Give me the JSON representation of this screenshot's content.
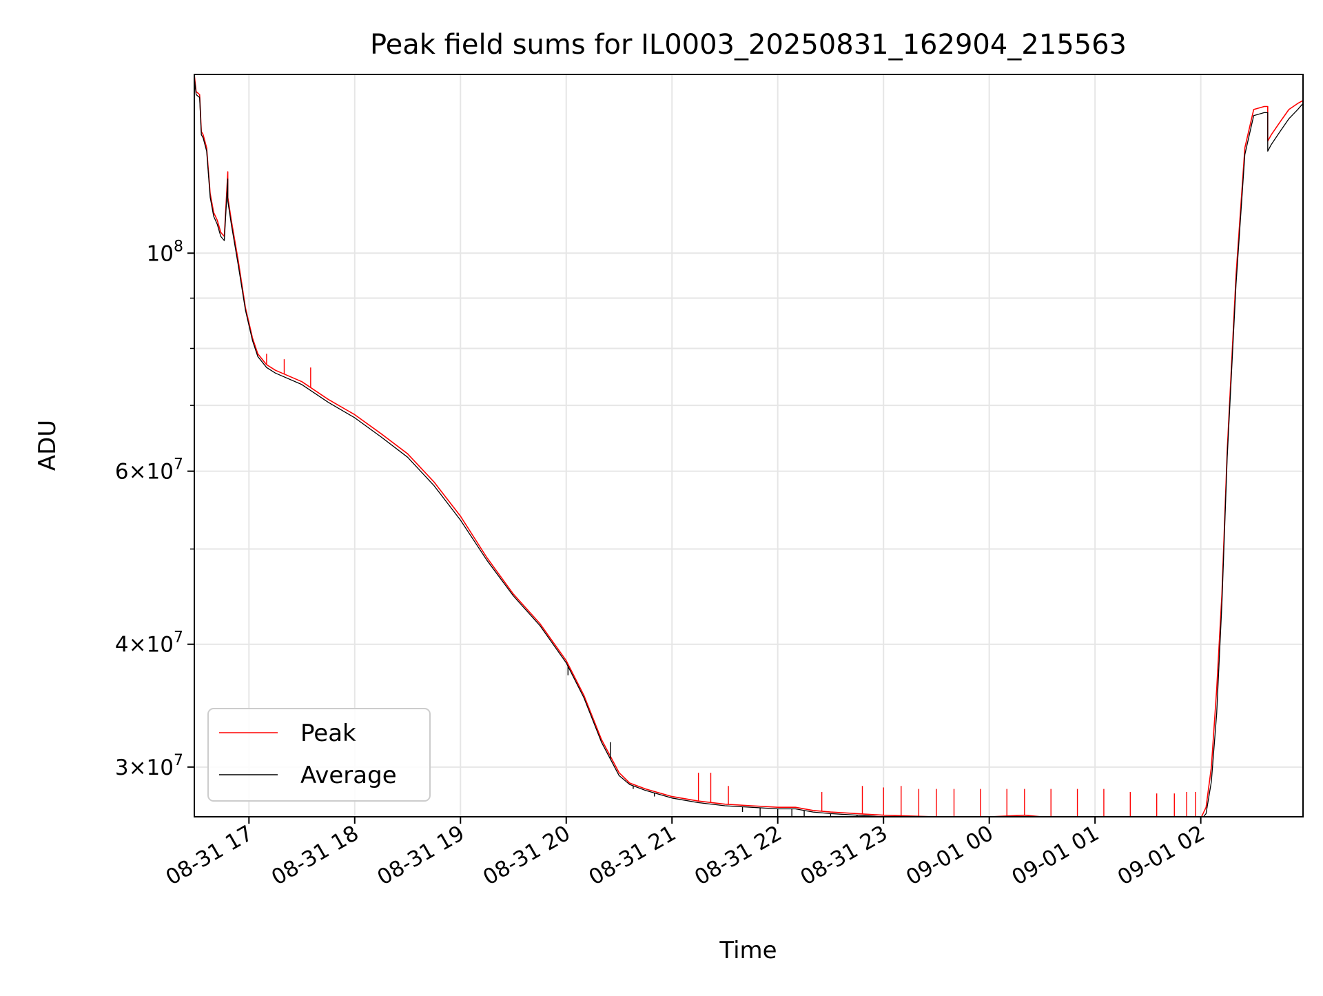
{
  "chart_data": {
    "type": "line",
    "title": "Peak field sums for IL0003_20250831_162904_215563",
    "xlabel": "Time",
    "ylabel": "ADU",
    "yscale": "log",
    "xlim": [
      "2025-08-31 16:29",
      "2025-09-01 02:58"
    ],
    "ylim": [
      26700000,
      152000000
    ],
    "grid": true,
    "legend_position": "lower-left",
    "x_ticks": [
      {
        "t": "2025-08-31 17:00",
        "label": "08-31 17"
      },
      {
        "t": "2025-08-31 18:00",
        "label": "08-31 18"
      },
      {
        "t": "2025-08-31 19:00",
        "label": "08-31 19"
      },
      {
        "t": "2025-08-31 20:00",
        "label": "08-31 20"
      },
      {
        "t": "2025-08-31 21:00",
        "label": "08-31 21"
      },
      {
        "t": "2025-08-31 22:00",
        "label": "08-31 22"
      },
      {
        "t": "2025-08-31 23:00",
        "label": "08-31 23"
      },
      {
        "t": "2025-09-01 00:00",
        "label": "09-01 00"
      },
      {
        "t": "2025-09-01 01:00",
        "label": "09-01 01"
      },
      {
        "t": "2025-09-01 02:00",
        "label": "09-01 02"
      }
    ],
    "y_ticks": [
      {
        "value": 30000000,
        "mant": "3",
        "exp": "7"
      },
      {
        "value": 40000000,
        "mant": "4",
        "exp": "7"
      },
      {
        "value": 60000000,
        "mant": "6",
        "exp": "7"
      },
      {
        "value": 100000000,
        "mant": "",
        "exp": "8"
      }
    ],
    "y_minor_ticks": [
      50000000,
      70000000,
      80000000,
      90000000
    ],
    "series": [
      {
        "name": "Peak",
        "color": "#ff0000",
        "x": [
          "2025-08-31 16:29",
          "2025-08-31 16:30",
          "2025-08-31 16:32",
          "2025-08-31 16:33",
          "2025-08-31 16:34",
          "2025-08-31 16:36",
          "2025-08-31 16:38",
          "2025-08-31 16:40",
          "2025-08-31 16:42",
          "2025-08-31 16:44",
          "2025-08-31 16:46",
          "2025-08-31 16:48",
          "2025-08-31 16:48",
          "2025-08-31 16:50",
          "2025-08-31 16:54",
          "2025-08-31 16:58",
          "2025-08-31 17:02",
          "2025-08-31 17:05",
          "2025-08-31 17:10",
          "2025-08-31 17:15",
          "2025-08-31 17:30",
          "2025-08-31 17:45",
          "2025-08-31 18:00",
          "2025-08-31 18:15",
          "2025-08-31 18:30",
          "2025-08-31 18:45",
          "2025-08-31 19:00",
          "2025-08-31 19:15",
          "2025-08-31 19:30",
          "2025-08-31 19:45",
          "2025-08-31 20:00",
          "2025-08-31 20:10",
          "2025-08-31 20:20",
          "2025-08-31 20:30",
          "2025-08-31 20:36",
          "2025-08-31 20:45",
          "2025-08-31 21:00",
          "2025-08-31 21:15",
          "2025-08-31 21:30",
          "2025-08-31 21:45",
          "2025-08-31 22:00",
          "2025-08-31 22:10",
          "2025-08-31 22:20",
          "2025-08-31 22:30",
          "2025-08-31 22:45",
          "2025-08-31 23:00",
          "2025-08-31 23:30",
          "2025-09-01 00:00",
          "2025-09-01 00:20",
          "2025-09-01 00:30",
          "2025-09-01 01:00",
          "2025-09-01 01:15",
          "2025-09-01 01:30",
          "2025-09-01 01:45",
          "2025-09-01 02:00",
          "2025-09-01 02:03",
          "2025-09-01 02:06",
          "2025-09-01 02:09",
          "2025-09-01 02:12",
          "2025-09-01 02:15",
          "2025-09-01 02:20",
          "2025-09-01 02:25",
          "2025-09-01 02:30",
          "2025-09-01 02:36",
          "2025-09-01 02:38",
          "2025-09-01 02:38",
          "2025-09-01 02:40",
          "2025-09-01 02:45",
          "2025-09-01 02:50",
          "2025-09-01 02:55",
          "2025-09-01 02:58"
        ],
        "y": [
          152000000,
          146000000,
          145000000,
          133000000,
          132000000,
          128000000,
          115000000,
          110000000,
          108000000,
          105000000,
          104000000,
          121000000,
          114000000,
          108000000,
          98000000,
          88000000,
          82000000,
          79000000,
          77000000,
          76000000,
          74000000,
          71000000,
          68500000,
          65500000,
          62500000,
          58500000,
          54000000,
          49000000,
          45000000,
          42000000,
          38500000,
          35500000,
          32000000,
          29600000,
          28900000,
          28500000,
          28000000,
          27700000,
          27500000,
          27400000,
          27300000,
          27300000,
          27100000,
          27000000,
          26900000,
          26800000,
          26700000,
          26700000,
          26800000,
          26700000,
          26700000,
          26700000,
          26600000,
          26400000,
          26600000,
          27300000,
          30000000,
          36000000,
          45000000,
          63000000,
          95000000,
          128000000,
          140000000,
          141000000,
          141000000,
          130000000,
          132000000,
          136000000,
          140000000,
          142000000,
          143000000
        ],
        "spikes": [
          {
            "x": "2025-08-31 17:10",
            "y": 79000000
          },
          {
            "x": "2025-08-31 17:20",
            "y": 78000000
          },
          {
            "x": "2025-08-31 17:35",
            "y": 76500000
          },
          {
            "x": "2025-08-31 21:15",
            "y": 29600000
          },
          {
            "x": "2025-08-31 21:22",
            "y": 29600000
          },
          {
            "x": "2025-08-31 21:32",
            "y": 28700000
          },
          {
            "x": "2025-08-31 22:25",
            "y": 28300000
          },
          {
            "x": "2025-08-31 22:48",
            "y": 28700000
          },
          {
            "x": "2025-08-31 23:00",
            "y": 28600000
          },
          {
            "x": "2025-08-31 23:10",
            "y": 28700000
          },
          {
            "x": "2025-08-31 23:20",
            "y": 28500000
          },
          {
            "x": "2025-08-31 23:30",
            "y": 28500000
          },
          {
            "x": "2025-08-31 23:40",
            "y": 28500000
          },
          {
            "x": "2025-08-31 23:55",
            "y": 28500000
          },
          {
            "x": "2025-09-01 00:10",
            "y": 28500000
          },
          {
            "x": "2025-09-01 00:20",
            "y": 28500000
          },
          {
            "x": "2025-09-01 00:35",
            "y": 28500000
          },
          {
            "x": "2025-09-01 00:50",
            "y": 28500000
          },
          {
            "x": "2025-09-01 01:05",
            "y": 28500000
          },
          {
            "x": "2025-09-01 01:20",
            "y": 28300000
          },
          {
            "x": "2025-09-01 01:35",
            "y": 28200000
          },
          {
            "x": "2025-09-01 01:45",
            "y": 28200000
          },
          {
            "x": "2025-09-01 01:52",
            "y": 28300000
          },
          {
            "x": "2025-09-01 01:57",
            "y": 28300000
          }
        ]
      },
      {
        "name": "Average",
        "color": "#000000",
        "x": [
          "2025-08-31 16:29",
          "2025-08-31 16:30",
          "2025-08-31 16:32",
          "2025-08-31 16:33",
          "2025-08-31 16:34",
          "2025-08-31 16:36",
          "2025-08-31 16:38",
          "2025-08-31 16:40",
          "2025-08-31 16:42",
          "2025-08-31 16:44",
          "2025-08-31 16:46",
          "2025-08-31 16:48",
          "2025-08-31 16:48",
          "2025-08-31 16:50",
          "2025-08-31 16:54",
          "2025-08-31 16:58",
          "2025-08-31 17:02",
          "2025-08-31 17:05",
          "2025-08-31 17:10",
          "2025-08-31 17:15",
          "2025-08-31 17:30",
          "2025-08-31 17:45",
          "2025-08-31 18:00",
          "2025-08-31 18:15",
          "2025-08-31 18:30",
          "2025-08-31 18:45",
          "2025-08-31 19:00",
          "2025-08-31 19:15",
          "2025-08-31 19:30",
          "2025-08-31 19:45",
          "2025-08-31 20:00",
          "2025-08-31 20:10",
          "2025-08-31 20:20",
          "2025-08-31 20:30",
          "2025-08-31 20:36",
          "2025-08-31 20:45",
          "2025-08-31 21:00",
          "2025-08-31 21:15",
          "2025-08-31 21:30",
          "2025-08-31 21:45",
          "2025-08-31 22:00",
          "2025-08-31 22:10",
          "2025-08-31 22:20",
          "2025-08-31 22:30",
          "2025-08-31 22:45",
          "2025-08-31 23:00",
          "2025-08-31 23:30",
          "2025-09-01 00:00",
          "2025-09-01 00:20",
          "2025-09-01 00:30",
          "2025-09-01 01:00",
          "2025-09-01 01:15",
          "2025-09-01 01:30",
          "2025-09-01 01:45",
          "2025-09-01 02:00",
          "2025-09-01 02:03",
          "2025-09-01 02:06",
          "2025-09-01 02:09",
          "2025-09-01 02:12",
          "2025-09-01 02:15",
          "2025-09-01 02:20",
          "2025-09-01 02:25",
          "2025-09-01 02:30",
          "2025-09-01 02:36",
          "2025-09-01 02:38",
          "2025-09-01 02:38",
          "2025-09-01 02:40",
          "2025-09-01 02:45",
          "2025-09-01 02:50",
          "2025-09-01 02:55",
          "2025-09-01 02:58"
        ],
        "y": [
          151000000,
          145000000,
          144000000,
          132000000,
          131000000,
          127000000,
          114000000,
          109000000,
          107000000,
          104000000,
          103000000,
          119000000,
          113000000,
          107000000,
          97000000,
          87500000,
          81500000,
          78500000,
          76500000,
          75500000,
          73500000,
          70500000,
          68000000,
          65000000,
          62000000,
          58000000,
          53500000,
          48700000,
          44800000,
          41800000,
          38300000,
          35300000,
          31800000,
          29400000,
          28800000,
          28400000,
          27900000,
          27600000,
          27400000,
          27300000,
          27200000,
          27200000,
          27000000,
          26900000,
          26800000,
          26700000,
          26600000,
          26600000,
          26700000,
          26600000,
          26600000,
          26600000,
          26500000,
          26300000,
          26500000,
          26900000,
          29000000,
          34000000,
          44000000,
          62000000,
          93000000,
          126000000,
          138000000,
          139000000,
          139000000,
          127000000,
          129000000,
          133000000,
          137000000,
          140000000,
          142000000
        ],
        "dips": [
          {
            "x": "2025-08-31 20:01",
            "y": 37200000
          },
          {
            "x": "2025-08-31 20:25",
            "y": 31800000
          },
          {
            "x": "2025-08-31 20:38",
            "y": 28500000
          },
          {
            "x": "2025-08-31 20:50",
            "y": 28000000
          },
          {
            "x": "2025-08-31 21:10",
            "y": 27700000
          },
          {
            "x": "2025-08-31 21:40",
            "y": 27000000
          },
          {
            "x": "2025-08-31 21:50",
            "y": 26700000
          },
          {
            "x": "2025-08-31 22:00",
            "y": 26600000
          },
          {
            "x": "2025-08-31 22:08",
            "y": 26500000
          },
          {
            "x": "2025-08-31 22:15",
            "y": 26600000
          },
          {
            "x": "2025-08-31 22:30",
            "y": 26500000
          },
          {
            "x": "2025-08-31 22:45",
            "y": 26500000
          }
        ]
      }
    ]
  }
}
